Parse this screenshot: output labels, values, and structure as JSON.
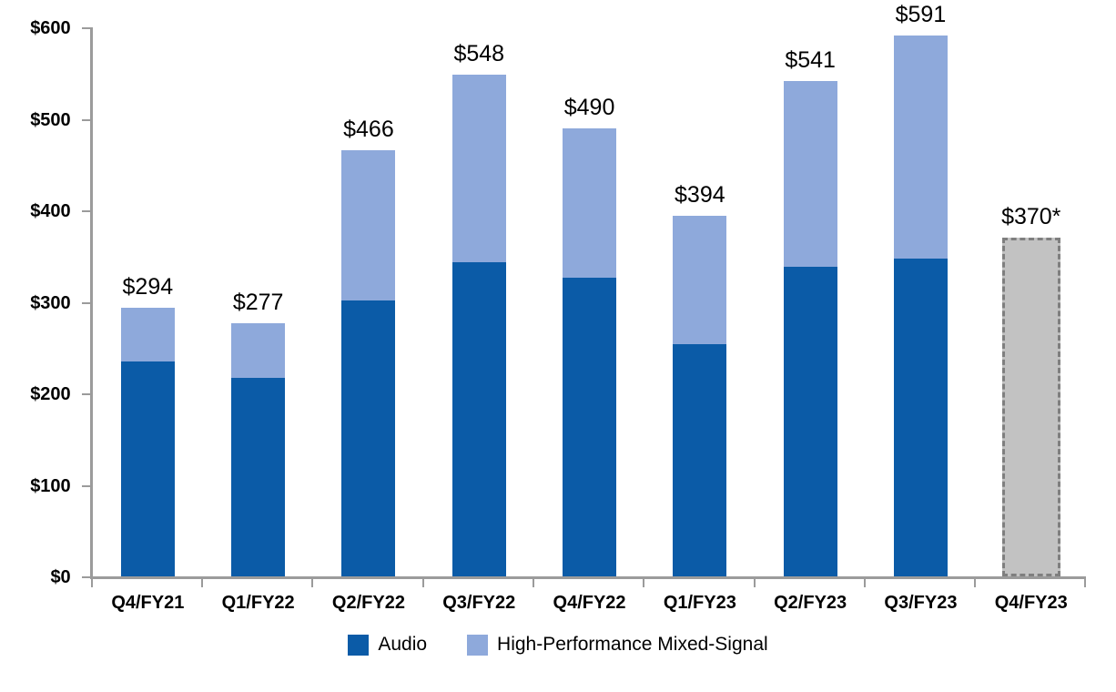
{
  "chart_data": {
    "type": "bar",
    "subtype": "stacked",
    "title": "",
    "categories": [
      "Q4/FY21",
      "Q1/FY22",
      "Q2/FY22",
      "Q3/FY22",
      "Q4/FY22",
      "Q1/FY23",
      "Q2/FY23",
      "Q3/FY23",
      "Q4/FY23"
    ],
    "series": [
      {
        "name": "Audio",
        "color": "#0B5BA7",
        "values": [
          235,
          217,
          301,
          343,
          326,
          254,
          338,
          347,
          null
        ]
      },
      {
        "name": "High-Performance Mixed-Signal",
        "color": "#8EA9DB",
        "values": [
          59,
          60,
          165,
          205,
          164,
          140,
          203,
          244,
          null
        ]
      }
    ],
    "totals": [
      294,
      277,
      466,
      548,
      490,
      394,
      541,
      591,
      370
    ],
    "total_labels": [
      "$294",
      "$277",
      "$466",
      "$548",
      "$490",
      "$394",
      "$541",
      "$591",
      "$370*"
    ],
    "forecast": {
      "index": 8,
      "category": "Q4/FY23",
      "value": 370,
      "label": "$370*",
      "fill_color": "#C2C2C2",
      "border_color": "#7F7F7F",
      "border_style": "dashed"
    },
    "y_axis": {
      "min": 0,
      "max": 600,
      "step": 100,
      "tick_labels": [
        "$0",
        "$100",
        "$200",
        "$300",
        "$400",
        "$500",
        "$600"
      ]
    },
    "grid": "off",
    "legend_position": "bottom",
    "axis_color": "#9B9B9B"
  }
}
